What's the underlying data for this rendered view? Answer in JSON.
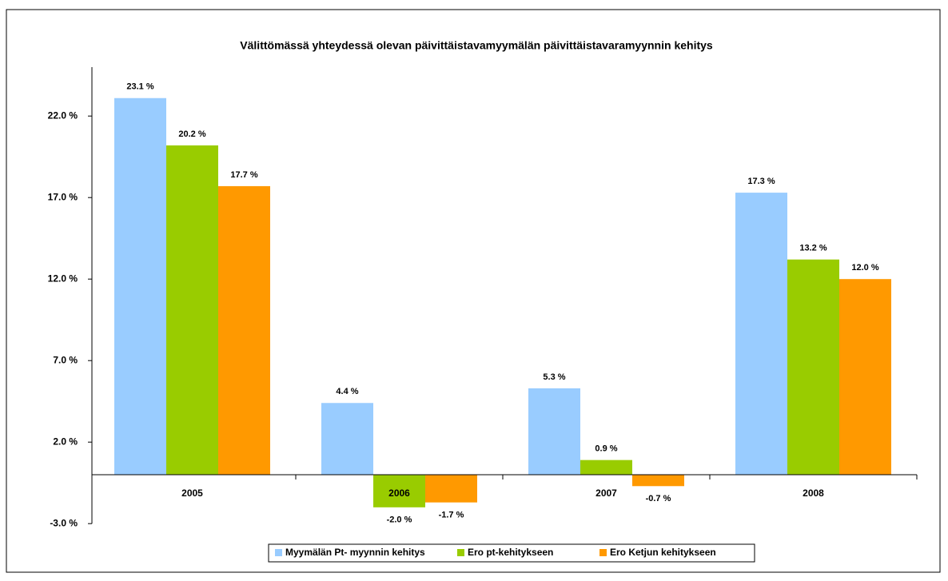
{
  "chart_data": {
    "type": "bar",
    "title": "Välittömässä yhteydessä olevan päivittäistavamyymälän päivittäistavaramyynnin kehitys",
    "categories": [
      "2005",
      "2006",
      "2007",
      "2008"
    ],
    "series": [
      {
        "name": "Myymälän Pt- myynnin kehitys",
        "color": "#99ccff",
        "values": [
          23.1,
          4.4,
          5.3,
          17.3
        ],
        "value_labels": [
          "23.1 %",
          "4.4 %",
          "5.3 %",
          "17.3 %"
        ]
      },
      {
        "name": "Ero pt-kehitykseen",
        "color": "#99cc00",
        "values": [
          20.2,
          -2.0,
          0.9,
          13.2
        ],
        "value_labels": [
          "20.2 %",
          "-2.0 %",
          "0.9 %",
          "13.2 %"
        ]
      },
      {
        "name": "Ero Ketjun kehitykseen",
        "color": "#ff9900",
        "values": [
          17.7,
          -1.7,
          -0.7,
          12.0
        ],
        "value_labels": [
          "17.7 %",
          "-1.7 %",
          "-0.7 %",
          "12.0 %"
        ]
      }
    ],
    "ylim": [
      -3,
      25
    ],
    "yticks": [
      {
        "value": -3,
        "label": "-3.0 %"
      },
      {
        "value": 2,
        "label": "2.0 %"
      },
      {
        "value": 7,
        "label": "7.0 %"
      },
      {
        "value": 12,
        "label": "12.0 %"
      },
      {
        "value": 17,
        "label": "17.0 %"
      },
      {
        "value": 22,
        "label": "22.0 %"
      }
    ],
    "grid": false,
    "legend": "bottom"
  }
}
